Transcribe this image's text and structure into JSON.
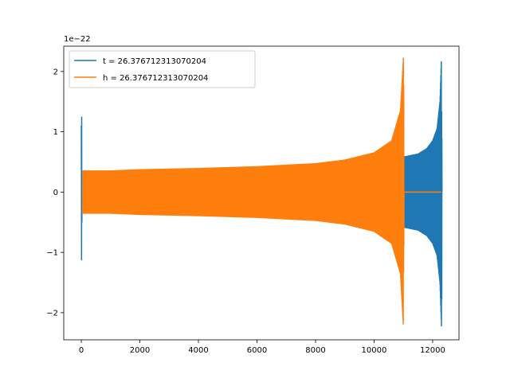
{
  "chart_data": {
    "type": "line",
    "title": "",
    "xlabel": "",
    "ylabel": "",
    "y_offset_label": "1e−22",
    "xlim": [
      -600,
      12900
    ],
    "ylim": [
      -2.45,
      2.42
    ],
    "x_ticks": [
      0,
      2000,
      4000,
      6000,
      8000,
      10000,
      12000
    ],
    "x_tick_labels": [
      "0",
      "2000",
      "4000",
      "6000",
      "8000",
      "10000",
      "12000"
    ],
    "y_ticks": [
      2,
      1,
      0,
      -1,
      -2
    ],
    "y_tick_labels": [
      "2",
      "1",
      "0",
      "−1",
      "−2"
    ],
    "grid": false,
    "legend_position": "upper-left",
    "series": [
      {
        "name": "t = 26.376712313070204",
        "color": "#1f77b4",
        "points": [
          [
            0,
            1.1
          ],
          [
            10,
            -1.68
          ],
          [
            20,
            0.5
          ],
          [
            40,
            -0.3
          ],
          [
            200,
            0.33
          ],
          [
            1000,
            0.34
          ],
          [
            2000,
            0.36
          ],
          [
            4000,
            0.38
          ],
          [
            6000,
            0.41
          ],
          [
            8000,
            0.46
          ],
          [
            10000,
            0.56
          ],
          [
            10600,
            0.68
          ],
          [
            11000,
            0.58
          ],
          [
            11500,
            0.63
          ],
          [
            11800,
            0.72
          ],
          [
            12000,
            0.85
          ],
          [
            12150,
            1.05
          ],
          [
            12250,
            1.5
          ],
          [
            12300,
            2.22
          ],
          [
            12310,
            -2.22
          ],
          [
            12320,
            0.0
          ],
          [
            12330,
            0.0
          ]
        ]
      },
      {
        "name": "h = 26.376712313070204",
        "color": "#ff7f0e",
        "points": [
          [
            40,
            -0.3
          ],
          [
            40,
            0.35
          ],
          [
            1000,
            0.35
          ],
          [
            2000,
            0.37
          ],
          [
            4000,
            0.39
          ],
          [
            6000,
            0.42
          ],
          [
            8000,
            0.47
          ],
          [
            9000,
            0.53
          ],
          [
            10000,
            0.65
          ],
          [
            10600,
            0.85
          ],
          [
            10900,
            1.35
          ],
          [
            11000,
            2.22
          ],
          [
            11010,
            -2.22
          ],
          [
            11020,
            0.0
          ],
          [
            12300,
            0.0
          ]
        ]
      }
    ]
  }
}
